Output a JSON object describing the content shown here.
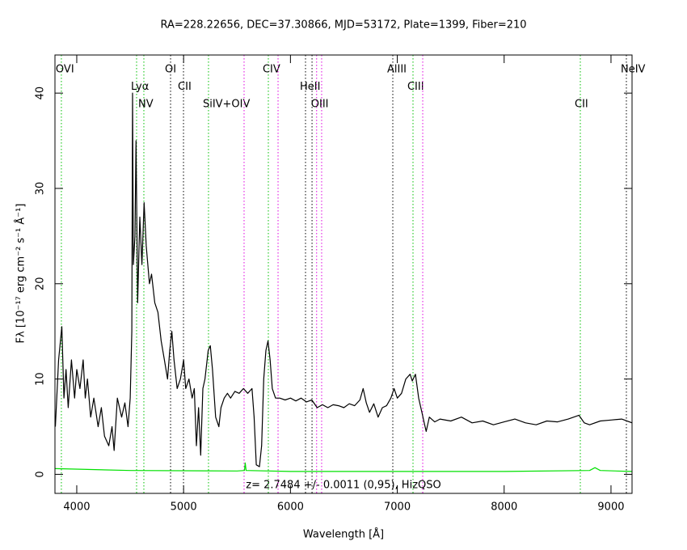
{
  "chart_data": {
    "type": "line",
    "title": "RA=228.22656, DEC=37.30866, MJD=53172, Plate=1399, Fiber=210",
    "x_label": "Wavelength [Å]",
    "y_label": "Fλ [10⁻¹⁷ erg cm⁻² s⁻¹ Å⁻¹]",
    "annotation": "z= 2.7484 +/- 0.0011 (0,95), HizQSO",
    "xlim": [
      3796,
      9197
    ],
    "ylim": [
      -2,
      44
    ],
    "xticks": [
      4000,
      5000,
      6000,
      7000,
      8000,
      9000
    ],
    "yticks": [
      0,
      10,
      20,
      30,
      40
    ],
    "series": [
      {
        "color": "#000000",
        "x": [
          3800,
          3830,
          3860,
          3880,
          3900,
          3920,
          3950,
          3980,
          4000,
          4030,
          4060,
          4080,
          4100,
          4130,
          4160,
          4200,
          4230,
          4260,
          4300,
          4330,
          4350,
          4380,
          4420,
          4450,
          4480,
          4500,
          4515,
          4522,
          4530,
          4545,
          4555,
          4570,
          4590,
          4610,
          4630,
          4650,
          4680,
          4700,
          4730,
          4760,
          4790,
          4820,
          4850,
          4870,
          4890,
          4910,
          4940,
          4970,
          5000,
          5020,
          5050,
          5080,
          5100,
          5120,
          5140,
          5160,
          5180,
          5200,
          5230,
          5250,
          5270,
          5300,
          5330,
          5350,
          5380,
          5410,
          5440,
          5480,
          5520,
          5560,
          5600,
          5640,
          5660,
          5680,
          5710,
          5730,
          5750,
          5770,
          5790,
          5810,
          5830,
          5860,
          5900,
          5950,
          6000,
          6050,
          6100,
          6150,
          6200,
          6250,
          6300,
          6350,
          6400,
          6450,
          6500,
          6550,
          6600,
          6650,
          6680,
          6710,
          6740,
          6780,
          6820,
          6860,
          6900,
          6940,
          6970,
          7000,
          7040,
          7080,
          7120,
          7140,
          7170,
          7200,
          7230,
          7250,
          7270,
          7300,
          7350,
          7400,
          7500,
          7600,
          7700,
          7800,
          7900,
          8000,
          8100,
          8200,
          8300,
          8400,
          8500,
          8600,
          8700,
          8750,
          8800,
          8900,
          9000,
          9100,
          9197
        ],
        "values": [
          5,
          12,
          15.5,
          8,
          11,
          7,
          12,
          8,
          11,
          9,
          12,
          8,
          10,
          6,
          8,
          5,
          7,
          4,
          3,
          5,
          2.5,
          8,
          6,
          7.5,
          5,
          8,
          15,
          40,
          22,
          25,
          35,
          18,
          27,
          22,
          28.5,
          24,
          20,
          21,
          18,
          17,
          14,
          12,
          10,
          13,
          15,
          12,
          9,
          10,
          12,
          9,
          10,
          8,
          9,
          3,
          7,
          2,
          9,
          10,
          13,
          13.5,
          11,
          6,
          5,
          7,
          8,
          8.5,
          8,
          8.7,
          8.5,
          9,
          8.5,
          9,
          6,
          1,
          0.8,
          3,
          10,
          13,
          14,
          12,
          9,
          8,
          8,
          7.8,
          8,
          7.7,
          8,
          7.6,
          7.8,
          7,
          7.3,
          7,
          7.3,
          7.2,
          7,
          7.4,
          7.2,
          7.8,
          9,
          7.5,
          6.5,
          7.4,
          6,
          7,
          7.2,
          8,
          9,
          8,
          8.5,
          10,
          10.5,
          9.8,
          10.5,
          8,
          6.5,
          5.5,
          4.5,
          6,
          5.5,
          5.8,
          5.6,
          6,
          5.4,
          5.6,
          5.2,
          5.5,
          5.8,
          5.4,
          5.2,
          5.6,
          5.5,
          5.8,
          6.2,
          5.4,
          5.2,
          5.6,
          5.7,
          5.8,
          5.4
        ]
      },
      {
        "color": "#00e000",
        "x": [
          3800,
          4500,
          5500,
          5570,
          5577,
          5585,
          6000,
          7000,
          8000,
          8800,
          8850,
          8900,
          9197
        ],
        "values": [
          0.6,
          0.4,
          0.35,
          0.4,
          1.2,
          0.4,
          0.3,
          0.3,
          0.3,
          0.4,
          0.7,
          0.4,
          0.3
        ]
      }
    ],
    "lines": [
      {
        "label": "OVI",
        "wavelength": 3856,
        "color": "#00c000"
      },
      {
        "label": "Lyα",
        "wavelength": 4560,
        "color": "#00c000"
      },
      {
        "label": "NV",
        "wavelength": 4628,
        "color": "#00c000"
      },
      {
        "label": "OI",
        "wavelength": 4878,
        "color": "#000000"
      },
      {
        "label": "CII",
        "wavelength": 4999,
        "color": "#000000"
      },
      {
        "label": "SiIV+OIV",
        "wavelength": 5233,
        "color": "#00c000"
      },
      {
        "label": null,
        "wavelength": 5566,
        "color": "#e000e0"
      },
      {
        "label": "CIV",
        "wavelength": 5793,
        "color": "#00c000"
      },
      {
        "label": null,
        "wavelength": 5884,
        "color": "#e000e0"
      },
      {
        "label": "HeII",
        "wavelength": 6141,
        "color": "#000000"
      },
      {
        "label": null,
        "wavelength": 6202,
        "color": "#000000"
      },
      {
        "label": "OIII",
        "wavelength": 6245,
        "color": "#e000e0"
      },
      {
        "label": null,
        "wavelength": 6292,
        "color": "#e000e0"
      },
      {
        "label": "AlIII",
        "wavelength": 6958,
        "color": "#000000"
      },
      {
        "label": "CIII",
        "wavelength": 7147,
        "color": "#00c000"
      },
      {
        "label": null,
        "wavelength": 7238,
        "color": "#e000e0"
      },
      {
        "label": "CII",
        "wavelength": 8713,
        "color": "#00c000"
      },
      {
        "label": "NeIV",
        "wavelength": 9144,
        "color": "#000000"
      }
    ]
  }
}
